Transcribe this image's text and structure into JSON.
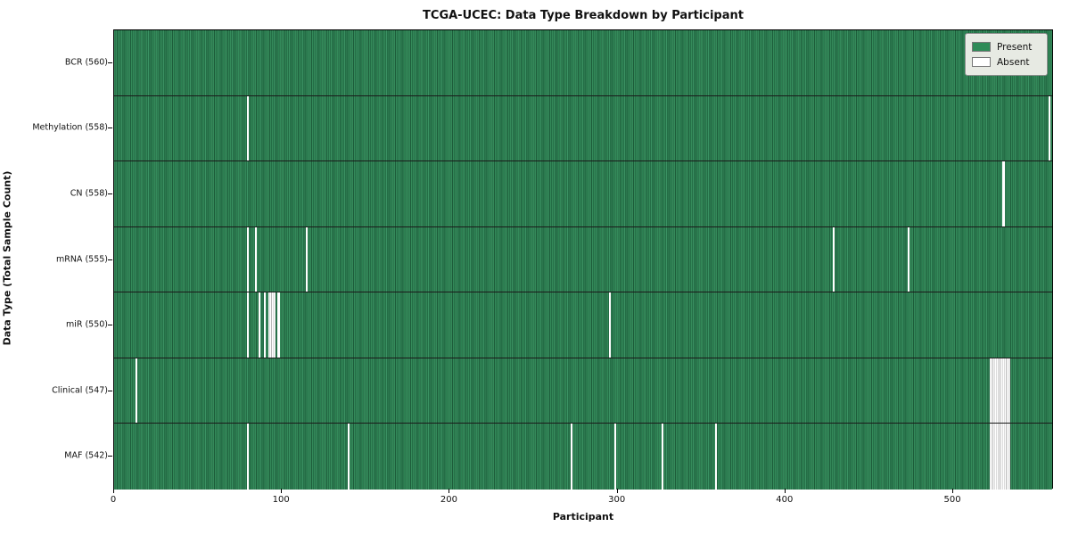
{
  "chart_data": {
    "type": "heatmap",
    "title": "TCGA-UCEC: Data Type Breakdown by Participant",
    "xlabel": "Participant",
    "ylabel": "Data Type (Total Sample Count)",
    "x_ticks": [
      0,
      100,
      200,
      300,
      400,
      500
    ],
    "total_participants": 560,
    "present_color": "#2e8b57",
    "absent_color": "#ffffff",
    "legend": {
      "position": "upper right",
      "entries": [
        {
          "label": "Present",
          "color": "#2e8b57"
        },
        {
          "label": "Absent",
          "color": "#ffffff"
        }
      ]
    },
    "rows": [
      {
        "name": "BCR",
        "label": "BCR (560)",
        "present_count": 560,
        "absent_runs": []
      },
      {
        "name": "Methylation",
        "label": "Methylation (558)",
        "present_count": 558,
        "absent_runs": [
          [
            79,
            1
          ],
          [
            557,
            1
          ]
        ]
      },
      {
        "name": "CN",
        "label": "CN (558)",
        "present_count": 558,
        "absent_runs": [
          [
            529,
            2
          ]
        ]
      },
      {
        "name": "mRNA",
        "label": "mRNA (555)",
        "present_count": 555,
        "absent_runs": [
          [
            79,
            1
          ],
          [
            84,
            1
          ],
          [
            114,
            1
          ],
          [
            428,
            1
          ],
          [
            473,
            1
          ]
        ]
      },
      {
        "name": "miR",
        "label": "miR (550)",
        "present_count": 550,
        "absent_runs": [
          [
            79,
            1
          ],
          [
            86,
            1
          ],
          [
            89,
            1
          ],
          [
            92,
            4
          ],
          [
            97,
            2
          ],
          [
            295,
            1
          ]
        ]
      },
      {
        "name": "Clinical",
        "label": "Clinical (547)",
        "present_count": 547,
        "absent_runs": [
          [
            13,
            1
          ],
          [
            522,
            12
          ]
        ]
      },
      {
        "name": "MAF",
        "label": "MAF (542)",
        "present_count": 542,
        "absent_runs": [
          [
            79,
            1
          ],
          [
            139,
            1
          ],
          [
            272,
            1
          ],
          [
            298,
            1
          ],
          [
            326,
            1
          ],
          [
            358,
            1
          ],
          [
            522,
            12
          ]
        ]
      }
    ]
  }
}
